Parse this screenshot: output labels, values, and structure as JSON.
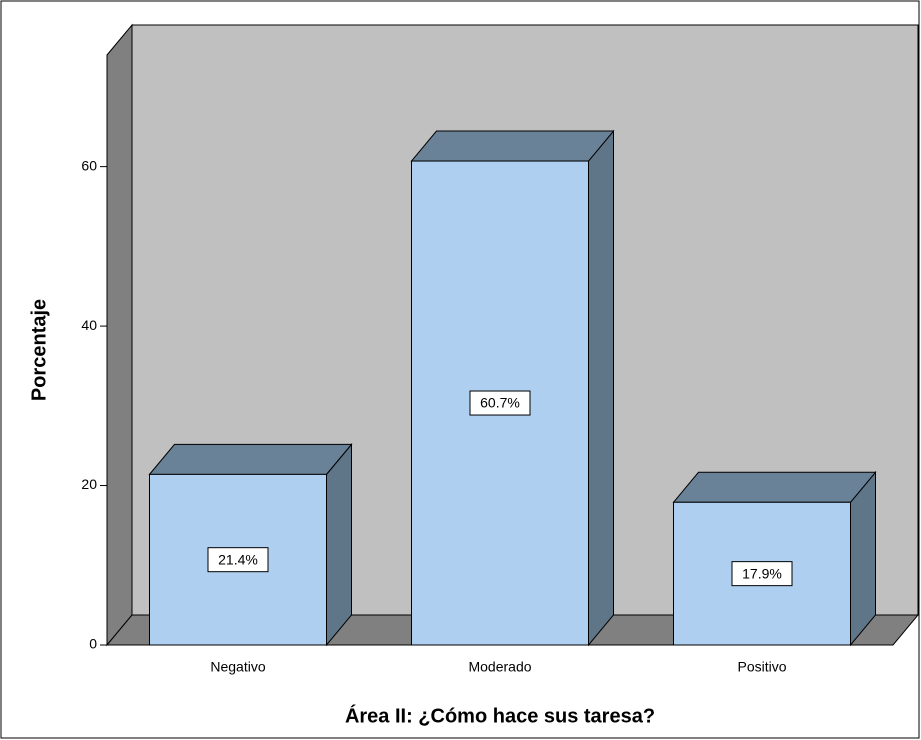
{
  "chart_data": {
    "type": "bar3d",
    "categories": [
      "Negativo",
      "Moderado",
      "Positivo"
    ],
    "values": [
      21.4,
      60.7,
      17.9
    ],
    "value_labels": [
      "21.4%",
      "60.7%",
      "17.9%"
    ],
    "color": "#aecff0",
    "xlabel": "Área II: ¿Cómo hace sus taresa?",
    "ylabel": "Porcentaje",
    "ylim": [
      0,
      74
    ],
    "yticks": [
      0,
      20,
      40,
      60
    ]
  }
}
